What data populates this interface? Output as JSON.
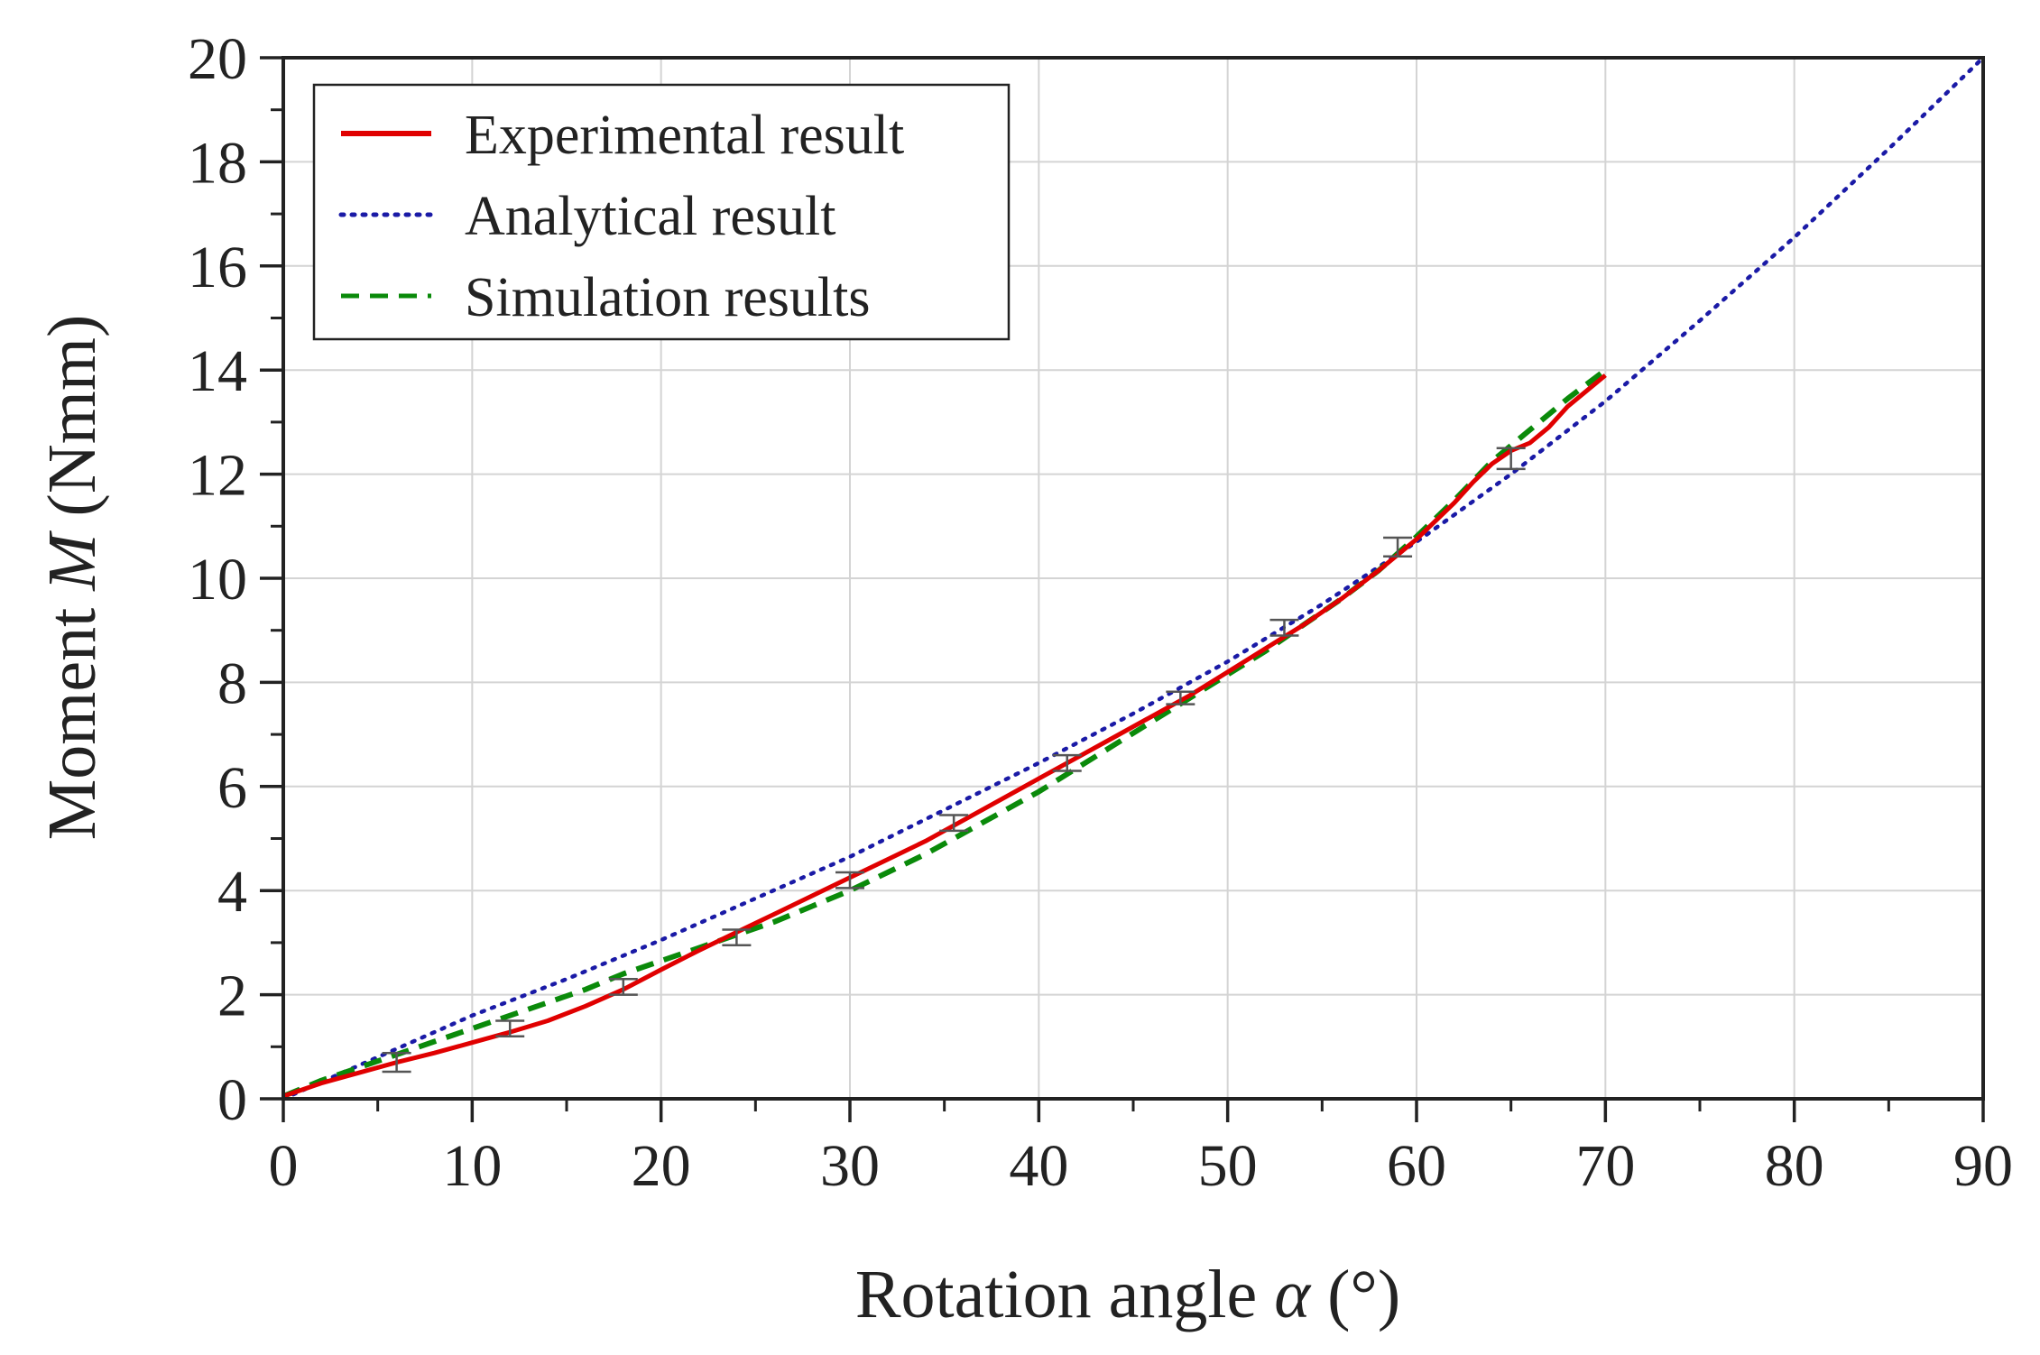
{
  "chart_data": {
    "type": "line",
    "title": "",
    "xlabel_main": "Rotation angle ",
    "xlabel_symbol": "α",
    "xlabel_unit": " (°)",
    "ylabel_main": "Moment ",
    "ylabel_symbol": "M",
    "ylabel_unit": " (Nmm)",
    "xlim": [
      0,
      90
    ],
    "ylim": [
      0,
      20
    ],
    "x_ticks": [
      0,
      10,
      20,
      30,
      40,
      50,
      60,
      70,
      80,
      90
    ],
    "y_ticks": [
      0,
      2,
      4,
      6,
      8,
      10,
      12,
      14,
      16,
      18,
      20
    ],
    "x_tick_labels": [
      "0",
      "10",
      "20",
      "30",
      "40",
      "50",
      "60",
      "70",
      "80",
      "90"
    ],
    "y_tick_labels": [
      "0",
      "2",
      "4",
      "6",
      "8",
      "10",
      "12",
      "14",
      "16",
      "18",
      "20"
    ],
    "grid": true,
    "legend_position": "top-left",
    "series": [
      {
        "name": "Experimental result",
        "color": "#e00000",
        "style": "solid",
        "x": [
          0,
          2,
          4,
          6,
          8,
          10,
          12,
          14,
          16,
          18,
          20,
          22,
          24,
          26,
          28,
          30,
          32,
          34,
          36,
          38,
          40,
          42,
          44,
          46,
          48,
          50,
          52,
          54,
          56,
          58,
          60,
          62,
          63,
          64,
          65,
          66,
          67,
          68,
          69,
          70
        ],
        "y": [
          0.05,
          0.3,
          0.5,
          0.7,
          0.88,
          1.08,
          1.28,
          1.5,
          1.78,
          2.1,
          2.48,
          2.85,
          3.2,
          3.55,
          3.9,
          4.25,
          4.6,
          4.95,
          5.35,
          5.75,
          6.15,
          6.55,
          6.95,
          7.35,
          7.75,
          8.2,
          8.65,
          9.1,
          9.6,
          10.15,
          10.75,
          11.45,
          11.85,
          12.2,
          12.45,
          12.6,
          12.9,
          13.3,
          13.6,
          13.9
        ]
      },
      {
        "name": "Analytical result",
        "color": "#1a1aa6",
        "style": "dotted",
        "x": [
          0,
          5,
          10,
          15,
          20,
          25,
          30,
          35,
          40,
          45,
          50,
          55,
          60,
          65,
          70,
          75,
          80,
          85,
          90
        ],
        "y": [
          0,
          0.8,
          1.6,
          2.3,
          3.05,
          3.85,
          4.65,
          5.55,
          6.45,
          7.4,
          8.4,
          9.5,
          10.7,
          12.0,
          13.4,
          14.95,
          16.55,
          18.25,
          20.0
        ]
      },
      {
        "name": "Simulation results",
        "color": "#0a8a0a",
        "style": "dashed",
        "x": [
          0,
          2,
          4,
          6,
          8,
          10,
          12,
          14,
          16,
          18,
          20,
          22,
          24,
          26,
          28,
          30,
          32,
          34,
          36,
          38,
          40,
          42,
          44,
          46,
          48,
          50,
          52,
          54,
          56,
          58,
          60,
          62,
          64,
          66,
          68,
          70
        ],
        "y": [
          0.05,
          0.35,
          0.6,
          0.85,
          1.1,
          1.35,
          1.6,
          1.85,
          2.1,
          2.4,
          2.65,
          2.9,
          3.15,
          3.4,
          3.7,
          4.0,
          4.35,
          4.7,
          5.1,
          5.5,
          5.9,
          6.35,
          6.8,
          7.25,
          7.7,
          8.15,
          8.6,
          9.1,
          9.6,
          10.15,
          10.8,
          11.5,
          12.25,
          12.85,
          13.45,
          14.0
        ]
      }
    ],
    "error_bars": {
      "color": "#555555",
      "points": [
        {
          "x": 6,
          "y": 0.7,
          "err": 0.18
        },
        {
          "x": 12,
          "y": 1.35,
          "err": 0.15
        },
        {
          "x": 18,
          "y": 2.15,
          "err": 0.15
        },
        {
          "x": 24,
          "y": 3.1,
          "err": 0.15
        },
        {
          "x": 30,
          "y": 4.2,
          "err": 0.15
        },
        {
          "x": 35.5,
          "y": 5.3,
          "err": 0.15
        },
        {
          "x": 41.5,
          "y": 6.45,
          "err": 0.15
        },
        {
          "x": 47.5,
          "y": 7.7,
          "err": 0.12
        },
        {
          "x": 53,
          "y": 9.05,
          "err": 0.15
        },
        {
          "x": 59,
          "y": 10.6,
          "err": 0.18
        },
        {
          "x": 65,
          "y": 12.3,
          "err": 0.2
        }
      ]
    }
  }
}
